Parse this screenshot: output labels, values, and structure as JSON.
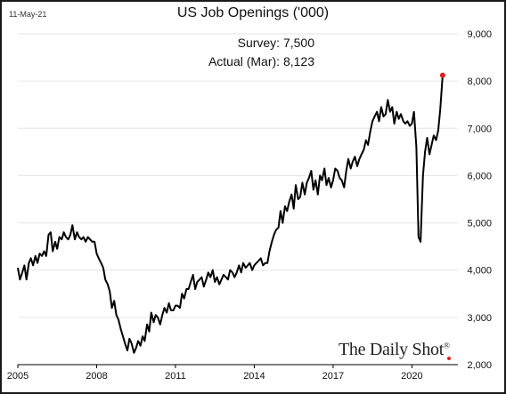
{
  "header": {
    "date": "11-May-21"
  },
  "annotations": {
    "survey": "Survey:  7,500",
    "actual": "Actual (Mar):  8,123"
  },
  "brand": {
    "name": "The Daily Shot",
    "mark": "®"
  },
  "colors": {
    "line": "#000000",
    "marker": "#e02020",
    "grid": "#e6e6e6"
  },
  "chart_data": {
    "type": "line",
    "title": "US Job Openings ('000)",
    "xlabel": "",
    "ylabel": "",
    "x_ticks": [
      "2005",
      "2008",
      "2011",
      "2014",
      "2017",
      "2020"
    ],
    "y_ticks": [
      "2,000",
      "3,000",
      "4,000",
      "5,000",
      "6,000",
      "7,000",
      "8,000",
      "9,000"
    ],
    "ylim": [
      2000,
      9000
    ],
    "xlim": [
      2005.0,
      2021.75
    ],
    "grid": "horizontal",
    "y_axis_position": "right",
    "series": [
      {
        "x": [
          2005.0,
          2005.08,
          2005.17,
          2005.25,
          2005.33,
          2005.42,
          2005.5,
          2005.58,
          2005.67,
          2005.75,
          2005.83,
          2005.92,
          2006.0,
          2006.08,
          2006.17,
          2006.25,
          2006.33,
          2006.42,
          2006.5,
          2006.58,
          2006.67,
          2006.75,
          2006.83,
          2006.92,
          2007.0,
          2007.08,
          2007.17,
          2007.25,
          2007.33,
          2007.42,
          2007.5,
          2007.58,
          2007.67,
          2007.75,
          2007.83,
          2007.92,
          2008.0,
          2008.08,
          2008.17,
          2008.25,
          2008.33,
          2008.42,
          2008.5,
          2008.58,
          2008.67,
          2008.75,
          2008.83,
          2008.92,
          2009.0,
          2009.08,
          2009.17,
          2009.25,
          2009.33,
          2009.42,
          2009.5,
          2009.58,
          2009.67,
          2009.75,
          2009.83,
          2009.92,
          2010.0,
          2010.08,
          2010.17,
          2010.25,
          2010.33,
          2010.42,
          2010.5,
          2010.58,
          2010.67,
          2010.75,
          2010.83,
          2010.92,
          2011.0,
          2011.08,
          2011.17,
          2011.25,
          2011.33,
          2011.42,
          2011.5,
          2011.58,
          2011.67,
          2011.75,
          2011.83,
          2011.92,
          2012.0,
          2012.08,
          2012.17,
          2012.25,
          2012.33,
          2012.42,
          2012.5,
          2012.58,
          2012.67,
          2012.75,
          2012.83,
          2012.92,
          2013.0,
          2013.08,
          2013.17,
          2013.25,
          2013.33,
          2013.42,
          2013.5,
          2013.58,
          2013.67,
          2013.75,
          2013.83,
          2013.92,
          2014.0,
          2014.08,
          2014.17,
          2014.25,
          2014.33,
          2014.42,
          2014.5,
          2014.58,
          2014.67,
          2014.75,
          2014.83,
          2014.92,
          2015.0,
          2015.08,
          2015.17,
          2015.25,
          2015.33,
          2015.42,
          2015.5,
          2015.58,
          2015.67,
          2015.75,
          2015.83,
          2015.92,
          2016.0,
          2016.08,
          2016.17,
          2016.25,
          2016.33,
          2016.42,
          2016.5,
          2016.58,
          2016.67,
          2016.75,
          2016.83,
          2016.92,
          2017.0,
          2017.08,
          2017.17,
          2017.25,
          2017.33,
          2017.42,
          2017.5,
          2017.58,
          2017.67,
          2017.75,
          2017.83,
          2017.92,
          2018.0,
          2018.08,
          2018.17,
          2018.25,
          2018.33,
          2018.42,
          2018.5,
          2018.58,
          2018.67,
          2018.75,
          2018.83,
          2018.92,
          2019.0,
          2019.08,
          2019.17,
          2019.25,
          2019.33,
          2019.42,
          2019.5,
          2019.58,
          2019.67,
          2019.75,
          2019.83,
          2019.92,
          2020.0,
          2020.08,
          2020.17,
          2020.25,
          2020.33,
          2020.42,
          2020.5,
          2020.58,
          2020.67,
          2020.75,
          2020.83,
          2020.92,
          2021.0,
          2021.08,
          2021.17
        ],
        "values": [
          4050,
          3800,
          3950,
          4100,
          3800,
          4150,
          4250,
          4100,
          4300,
          4150,
          4350,
          4300,
          4400,
          4300,
          4750,
          4800,
          4400,
          4600,
          4450,
          4700,
          4650,
          4800,
          4700,
          4650,
          4750,
          4950,
          4650,
          4800,
          4700,
          4650,
          4700,
          4600,
          4700,
          4650,
          4600,
          4600,
          4350,
          4250,
          4150,
          4050,
          3800,
          3700,
          3550,
          3200,
          3350,
          3050,
          2950,
          2750,
          2600,
          2450,
          2300,
          2550,
          2450,
          2250,
          2350,
          2500,
          2400,
          2600,
          2500,
          2850,
          2700,
          3100,
          2900,
          3050,
          3000,
          2850,
          3050,
          3200,
          3100,
          3300,
          3150,
          3150,
          3250,
          3250,
          3200,
          3500,
          3400,
          3600,
          3600,
          3750,
          3900,
          3600,
          3750,
          3800,
          3850,
          3650,
          3800,
          3950,
          3850,
          4000,
          3750,
          3850,
          3700,
          3800,
          3900,
          3850,
          3800,
          4000,
          3950,
          3850,
          3950,
          4100,
          3950,
          4150,
          4050,
          4100,
          4150,
          4000,
          4100,
          4150,
          4200,
          4250,
          4100,
          4150,
          4150,
          4400,
          4600,
          4750,
          4850,
          4900,
          5250,
          5000,
          5350,
          5250,
          5450,
          5600,
          5300,
          5800,
          5500,
          5550,
          5850,
          5600,
          5850,
          5950,
          6100,
          5700,
          5900,
          5600,
          6000,
          5900,
          6150,
          5800,
          5950,
          5750,
          5900,
          6150,
          6100,
          5950,
          5900,
          5750,
          6100,
          6350,
          6150,
          6300,
          6400,
          6200,
          6350,
          6450,
          6550,
          6750,
          6650,
          6950,
          7150,
          7250,
          7350,
          7150,
          7450,
          7250,
          7300,
          7600,
          7350,
          7450,
          7100,
          7350,
          7200,
          7300,
          7150,
          7100,
          7150,
          7050,
          7100,
          7350,
          6600,
          4700,
          4600,
          6000,
          6500,
          6800,
          6450,
          6650,
          6850,
          6750,
          6950,
          7400,
          8123
        ]
      },
      {
        "name": "Survey",
        "x": [
          2021.17
        ],
        "values": [
          7500
        ]
      }
    ]
  }
}
